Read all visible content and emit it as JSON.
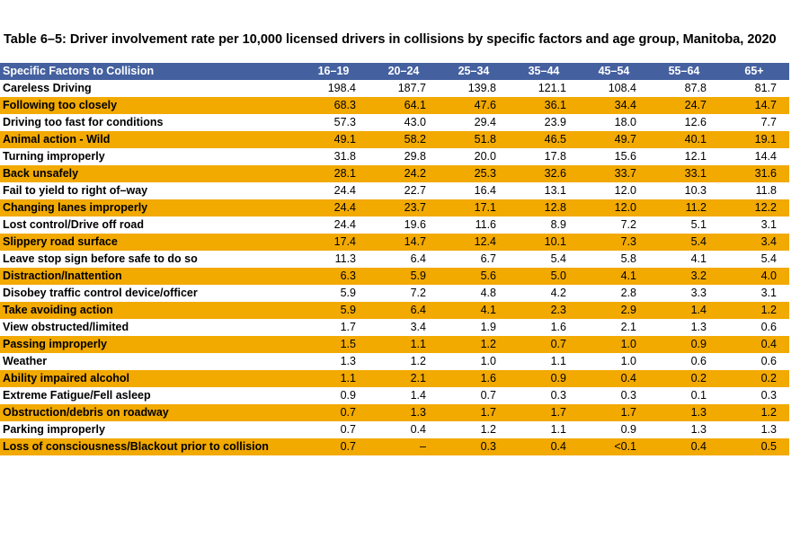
{
  "title": "Table 6–5: Driver involvement rate per 10,000 licensed drivers in collisions by specific factors and age group, Manitoba, 2020",
  "table": {
    "header": [
      "Specific Factors to Collision",
      "16–19",
      "20–24",
      "25–34",
      "35–44",
      "45–54",
      "55–64",
      "65+"
    ],
    "rows": [
      [
        "Careless Driving",
        "198.4",
        "187.7",
        "139.8",
        "121.1",
        "108.4",
        "87.8",
        "81.7"
      ],
      [
        "Following too closely",
        "68.3",
        "64.1",
        "47.6",
        "36.1",
        "34.4",
        "24.7",
        "14.7"
      ],
      [
        "Driving too fast for conditions",
        "57.3",
        "43.0",
        "29.4",
        "23.9",
        "18.0",
        "12.6",
        "7.7"
      ],
      [
        "Animal action - Wild",
        "49.1",
        "58.2",
        "51.8",
        "46.5",
        "49.7",
        "40.1",
        "19.1"
      ],
      [
        "Turning improperly",
        "31.8",
        "29.8",
        "20.0",
        "17.8",
        "15.6",
        "12.1",
        "14.4"
      ],
      [
        "Back unsafely",
        "28.1",
        "24.2",
        "25.3",
        "32.6",
        "33.7",
        "33.1",
        "31.6"
      ],
      [
        "Fail to yield to right of–way",
        "24.4",
        "22.7",
        "16.4",
        "13.1",
        "12.0",
        "10.3",
        "11.8"
      ],
      [
        "Changing lanes improperly",
        "24.4",
        "23.7",
        "17.1",
        "12.8",
        "12.0",
        "11.2",
        "12.2"
      ],
      [
        "Lost control/Drive off road",
        "24.4",
        "19.6",
        "11.6",
        "8.9",
        "7.2",
        "5.1",
        "3.1"
      ],
      [
        "Slippery road surface",
        "17.4",
        "14.7",
        "12.4",
        "10.1",
        "7.3",
        "5.4",
        "3.4"
      ],
      [
        "Leave stop sign before safe to do so",
        "11.3",
        "6.4",
        "6.7",
        "5.4",
        "5.8",
        "4.1",
        "5.4"
      ],
      [
        "Distraction/Inattention",
        "6.3",
        "5.9",
        "5.6",
        "5.0",
        "4.1",
        "3.2",
        "4.0"
      ],
      [
        "Disobey traffic control device/officer",
        "5.9",
        "7.2",
        "4.8",
        "4.2",
        "2.8",
        "3.3",
        "3.1"
      ],
      [
        "Take avoiding action",
        "5.9",
        "6.4",
        "4.1",
        "2.3",
        "2.9",
        "1.4",
        "1.2"
      ],
      [
        "View obstructed/limited",
        "1.7",
        "3.4",
        "1.9",
        "1.6",
        "2.1",
        "1.3",
        "0.6"
      ],
      [
        "Passing improperly",
        "1.5",
        "1.1",
        "1.2",
        "0.7",
        "1.0",
        "0.9",
        "0.4"
      ],
      [
        "Weather",
        "1.3",
        "1.2",
        "1.0",
        "1.1",
        "1.0",
        "0.6",
        "0.6"
      ],
      [
        "Ability impaired alcohol",
        "1.1",
        "2.1",
        "1.6",
        "0.9",
        "0.4",
        "0.2",
        "0.2"
      ],
      [
        "Extreme Fatigue/Fell asleep",
        "0.9",
        "1.4",
        "0.7",
        "0.3",
        "0.3",
        "0.1",
        "0.3"
      ],
      [
        "Obstruction/debris on roadway",
        "0.7",
        "1.3",
        "1.7",
        "1.7",
        "1.7",
        "1.3",
        "1.2"
      ],
      [
        "Parking improperly",
        "0.7",
        "0.4",
        "1.2",
        "1.1",
        "0.9",
        "1.3",
        "1.3"
      ],
      [
        "Loss of consciousness/Blackout prior to collision",
        "0.7",
        "–",
        "0.3",
        "0.4",
        "<0.1",
        "0.4",
        "0.5"
      ]
    ]
  }
}
